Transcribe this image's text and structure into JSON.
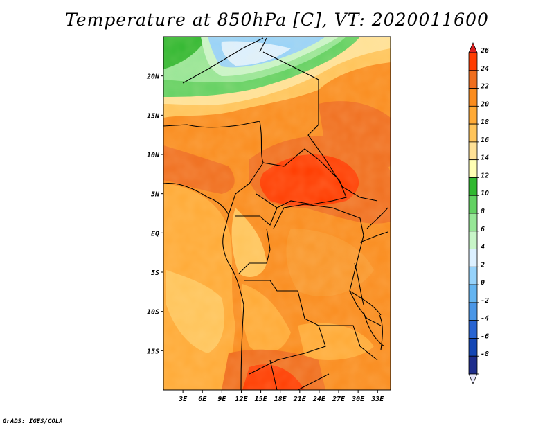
{
  "title": "Temperature at 850hPa [C], VT: 2020011600",
  "credit": "GrADS: IGES/COLA",
  "map": {
    "lon_labels": [
      "3E",
      "6E",
      "9E",
      "12E",
      "15E",
      "18E",
      "21E",
      "24E",
      "27E",
      "30E",
      "33E"
    ],
    "lat_labels": [
      "20N",
      "15N",
      "10N",
      "5N",
      "EQ",
      "5S",
      "10S",
      "15S"
    ],
    "lon_range": [
      0,
      35
    ],
    "lat_range": [
      -20,
      25
    ]
  },
  "colorbar": {
    "levels": [
      "26",
      "24",
      "22",
      "20",
      "18",
      "16",
      "14",
      "12",
      "10",
      "8",
      "6",
      "4",
      "2",
      "0",
      "-2",
      "-4",
      "-6",
      "-8"
    ],
    "colors": [
      "#dc1e1e",
      "#ff3c00",
      "#f06e1e",
      "#fa8c1e",
      "#ffaa36",
      "#ffc45a",
      "#ffe196",
      "#ffffb4",
      "#30b830",
      "#62d162",
      "#96e696",
      "#c8f5c8",
      "#dcf0ff",
      "#96d2fa",
      "#64b4f0",
      "#4a96e6",
      "#2864d2",
      "#1446b4",
      "#1e2d8c",
      "#e6e6fa"
    ]
  }
}
